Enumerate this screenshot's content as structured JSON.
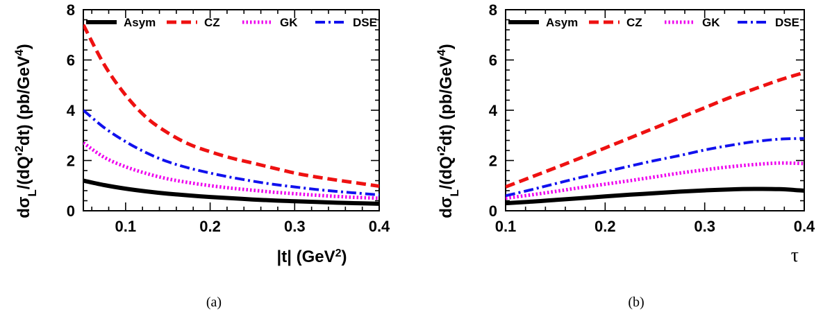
{
  "chart_data": [
    {
      "type": "line",
      "panel_label": "(a)",
      "xlabel": "|t| (GeV^2)",
      "ylabel": "dσ_L/(dQ'^2dt) (pb/GeV^4)",
      "xlim": [
        0.05,
        0.4
      ],
      "ylim": [
        0,
        8
      ],
      "xticks": [
        "0.1",
        "0.2",
        "0.3",
        "0.4"
      ],
      "yticks": [
        "0",
        "2",
        "4",
        "6",
        "8"
      ],
      "legend_position": "top",
      "x": [
        0.05,
        0.075,
        0.1,
        0.125,
        0.15,
        0.175,
        0.2,
        0.225,
        0.25,
        0.275,
        0.3,
        0.325,
        0.35,
        0.375,
        0.4
      ],
      "series": [
        {
          "name": "Asym",
          "style": "solid",
          "color": "#000000",
          "values": [
            1.2,
            1.02,
            0.88,
            0.77,
            0.68,
            0.61,
            0.55,
            0.5,
            0.45,
            0.41,
            0.38,
            0.35,
            0.32,
            0.3,
            0.28
          ]
        },
        {
          "name": "CZ",
          "style": "dashed",
          "color": "#ee1111",
          "values": [
            7.4,
            5.8,
            4.6,
            3.7,
            3.1,
            2.65,
            2.35,
            2.1,
            1.9,
            1.7,
            1.5,
            1.35,
            1.22,
            1.1,
            0.98
          ]
        },
        {
          "name": "GK",
          "style": "dotted",
          "color": "#ee00ee",
          "values": [
            2.7,
            2.12,
            1.75,
            1.48,
            1.27,
            1.12,
            1.0,
            0.9,
            0.82,
            0.74,
            0.68,
            0.62,
            0.57,
            0.53,
            0.5
          ]
        },
        {
          "name": "DSE",
          "style": "dashdot",
          "color": "#1111ee",
          "values": [
            4.0,
            3.3,
            2.75,
            2.3,
            1.95,
            1.7,
            1.5,
            1.33,
            1.18,
            1.05,
            0.95,
            0.85,
            0.77,
            0.7,
            0.63
          ]
        }
      ]
    },
    {
      "type": "line",
      "panel_label": "(b)",
      "xlabel": "τ",
      "ylabel": "dσ_L/(dQ'^2dt) (pb/GeV^4)",
      "xlim": [
        0.1,
        0.4
      ],
      "ylim": [
        0,
        8
      ],
      "xticks": [
        "0.1",
        "0.2",
        "0.3",
        "0.4"
      ],
      "yticks": [
        "0",
        "2",
        "4",
        "6",
        "8"
      ],
      "legend_position": "top",
      "x": [
        0.1,
        0.125,
        0.15,
        0.175,
        0.2,
        0.225,
        0.25,
        0.275,
        0.3,
        0.325,
        0.35,
        0.375,
        0.4
      ],
      "series": [
        {
          "name": "Asym",
          "style": "solid",
          "color": "#000000",
          "values": [
            0.3,
            0.36,
            0.43,
            0.5,
            0.57,
            0.64,
            0.7,
            0.76,
            0.81,
            0.85,
            0.87,
            0.86,
            0.8
          ]
        },
        {
          "name": "CZ",
          "style": "dashed",
          "color": "#ee1111",
          "values": [
            0.95,
            1.33,
            1.71,
            2.1,
            2.5,
            2.9,
            3.3,
            3.7,
            4.1,
            4.5,
            4.85,
            5.2,
            5.5
          ]
        },
        {
          "name": "GK",
          "style": "dotted",
          "color": "#ee00ee",
          "values": [
            0.5,
            0.63,
            0.77,
            0.92,
            1.06,
            1.2,
            1.35,
            1.5,
            1.63,
            1.75,
            1.84,
            1.9,
            1.88
          ]
        },
        {
          "name": "DSE",
          "style": "dashdot",
          "color": "#1111ee",
          "values": [
            0.6,
            0.83,
            1.08,
            1.32,
            1.55,
            1.78,
            2.0,
            2.2,
            2.42,
            2.6,
            2.75,
            2.85,
            2.88
          ]
        }
      ]
    }
  ]
}
